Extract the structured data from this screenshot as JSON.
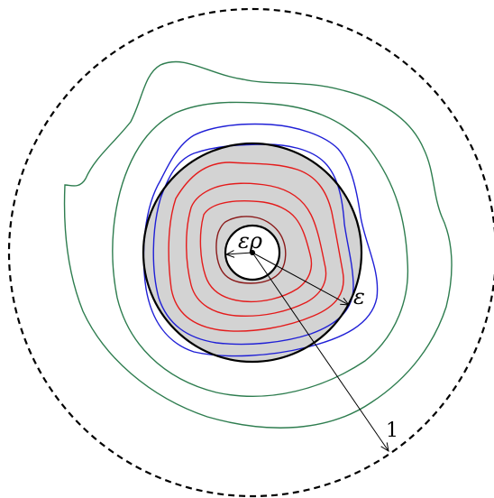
{
  "labels": {
    "inner_radius": "ερ",
    "outer_radius": "ε",
    "unit_radius": "1"
  },
  "colors": {
    "green_level_curves": "#2e7d4f",
    "blue_level_curves": "#1f1fd6",
    "red_level_curves": "#e41b1b",
    "dark_red_level_curve": "#8b1a1a",
    "shaded_annulus_fill": "#d3d3d3",
    "outline": "#000000"
  }
}
